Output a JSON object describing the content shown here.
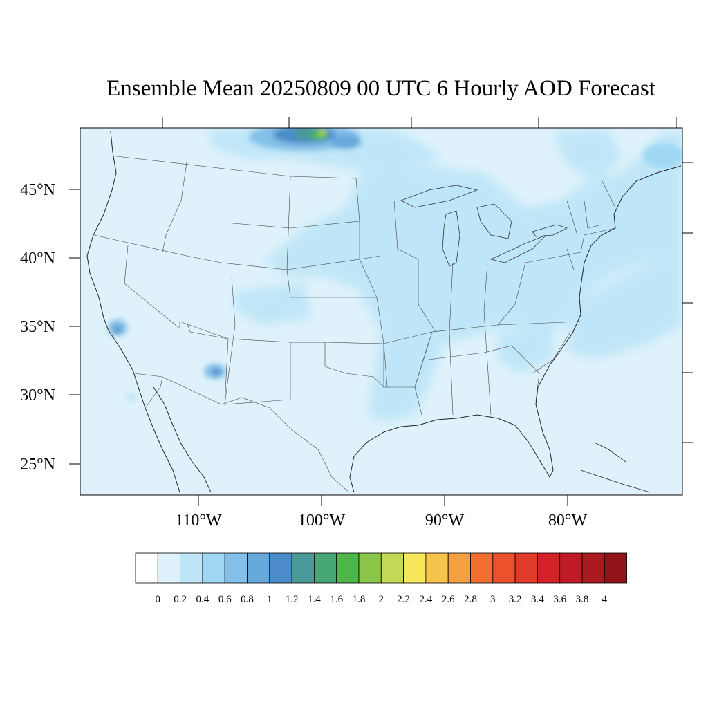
{
  "title": "Ensemble Mean 20250809 00 UTC 6 Hourly AOD Forecast",
  "map": {
    "lat_labels": [
      "45°N",
      "40°N",
      "35°N",
      "30°N",
      "25°N"
    ],
    "lon_labels": [
      "110°W",
      "100°W",
      "90°W",
      "80°W"
    ],
    "background_value_color": "#dff2fb"
  },
  "colorbar": {
    "labels": [
      "0",
      "0.2",
      "0.4",
      "0.6",
      "0.8",
      "1",
      "1.2",
      "1.4",
      "1.6",
      "1.8",
      "2",
      "2.2",
      "2.4",
      "2.6",
      "2.8",
      "3",
      "3.2",
      "3.4",
      "3.6",
      "3.8",
      "4"
    ],
    "colors": [
      "#ffffff",
      "#dff2fb",
      "#bfe6f8",
      "#a0d8f3",
      "#84c0e8",
      "#66a7dc",
      "#4c8bc9",
      "#4a9a9a",
      "#47a774",
      "#4cb649",
      "#8ac64a",
      "#c4d858",
      "#f7e65a",
      "#f6c44c",
      "#f5a040",
      "#f36f30",
      "#eb512a",
      "#e03a29",
      "#d42128",
      "#c01b25",
      "#a91a1f",
      "#931418"
    ]
  }
}
